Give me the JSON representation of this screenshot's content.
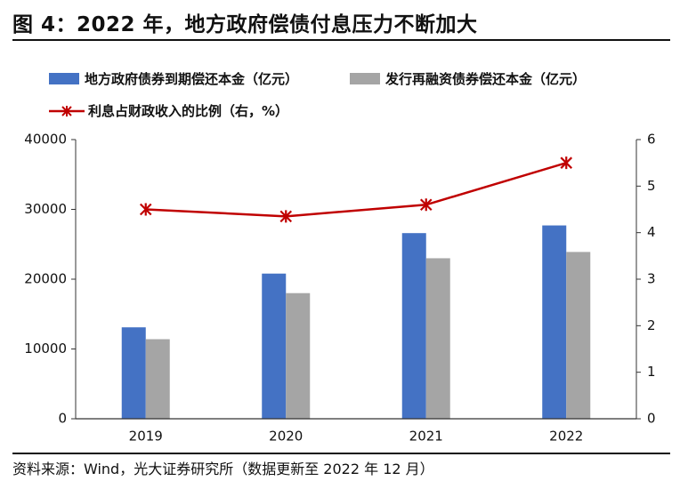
{
  "header": {
    "title": "图 4：2022 年，地方政府偿债付息压力不断加大"
  },
  "footer": {
    "source": "资料来源：Wind，光大证券研究所（数据更新至 2022 年 12 月）"
  },
  "colors": {
    "series1": "#4472C4",
    "series2": "#A5A5A5",
    "series3": "#C00000"
  },
  "chart_data": {
    "type": "bar",
    "categories": [
      "2019",
      "2020",
      "2021",
      "2022"
    ],
    "series": [
      {
        "name": "地方政府债券到期偿还本金（亿元）",
        "type": "bar",
        "axis": "left",
        "values": [
          13100,
          20800,
          26600,
          27700
        ]
      },
      {
        "name": "发行再融资债券偿还本金（亿元）",
        "type": "bar",
        "axis": "left",
        "values": [
          11400,
          18000,
          23000,
          23900
        ]
      },
      {
        "name": "利息占财政收入的比例（右，%）",
        "type": "line",
        "axis": "right",
        "values": [
          4.5,
          4.35,
          4.6,
          5.5
        ]
      }
    ],
    "y_left": {
      "ylim": [
        0,
        40000
      ],
      "ticks": [
        "0",
        "10000",
        "20000",
        "30000",
        "40000"
      ]
    },
    "y_right": {
      "ylim": [
        0,
        6
      ],
      "ticks": [
        "0",
        "1",
        "2",
        "3",
        "4",
        "5",
        "6"
      ]
    },
    "legend_position": "top-left",
    "grid": false
  }
}
